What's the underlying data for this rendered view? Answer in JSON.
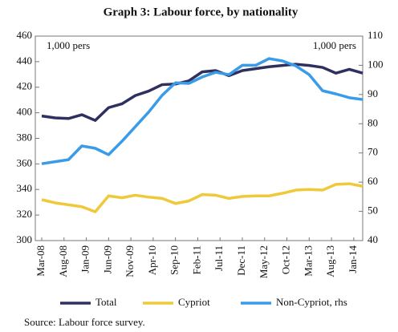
{
  "chart_data": {
    "type": "line",
    "title": "Graph 3: Labour force, by nationality",
    "annotations": [
      "1,000 pers",
      "1,000 pers"
    ],
    "source": "Source: Labour force survey.",
    "x": [
      "Mar-08",
      "Jun-08",
      "Sep-08",
      "Dec-08",
      "Mar-09",
      "Jun-09",
      "Sep-09",
      "Dec-09",
      "Mar-10",
      "Jun-10",
      "Sep-10",
      "Dec-10",
      "Mar-11",
      "Jun-11",
      "Sep-11",
      "Dec-11",
      "Mar-12",
      "Jun-12",
      "Sep-12",
      "Dec-12",
      "Mar-13",
      "Jun-13",
      "Sep-13",
      "Dec-13",
      "Mar-14"
    ],
    "xticks": [
      "Mar-08",
      "Aug-08",
      "Jan-09",
      "Jun-09",
      "Nov-09",
      "Apr-10",
      "Sep-10",
      "Feb-11",
      "Jul-11",
      "Dec-11",
      "May-12",
      "Oct-12",
      "Mar-13",
      "Aug-13",
      "Jan-14"
    ],
    "series": [
      {
        "name": "Total",
        "color": "#2e3160",
        "values": [
          397.5,
          396,
          395.5,
          398.5,
          394,
          404,
          407,
          413.5,
          417,
          422,
          422.5,
          425,
          432,
          433,
          429,
          433,
          434.5,
          436,
          437,
          438,
          437,
          435.5,
          431,
          434,
          431
        ]
      },
      {
        "name": "Cypriot",
        "color": "#f0c93a",
        "values": [
          332,
          329.5,
          328,
          326.5,
          322.5,
          335,
          333.5,
          335.5,
          334,
          333,
          329,
          331,
          336,
          335.5,
          333,
          334.5,
          335,
          335,
          337,
          339.5,
          340,
          339.5,
          344,
          344.5,
          342.5
        ]
      },
      {
        "name": "Non-Cypriot, rhs",
        "color": "#3a9be8",
        "axis": "y2",
        "values": [
          66.3,
          67,
          67.7,
          72.4,
          71.6,
          69.4,
          74,
          79,
          84,
          89.7,
          94,
          93.8,
          96,
          97.6,
          96.8,
          100,
          100,
          102.3,
          101.5,
          99.8,
          96.8,
          91.3,
          90.2,
          88.9,
          88.3
        ]
      }
    ],
    "ylim": [
      300,
      460
    ],
    "yticks": [
      300,
      320,
      340,
      360,
      380,
      400,
      420,
      440,
      460
    ],
    "y2lim": [
      40,
      110
    ],
    "y2ticks": [
      40,
      50,
      60,
      70,
      80,
      90,
      100,
      110
    ],
    "grid": false
  }
}
